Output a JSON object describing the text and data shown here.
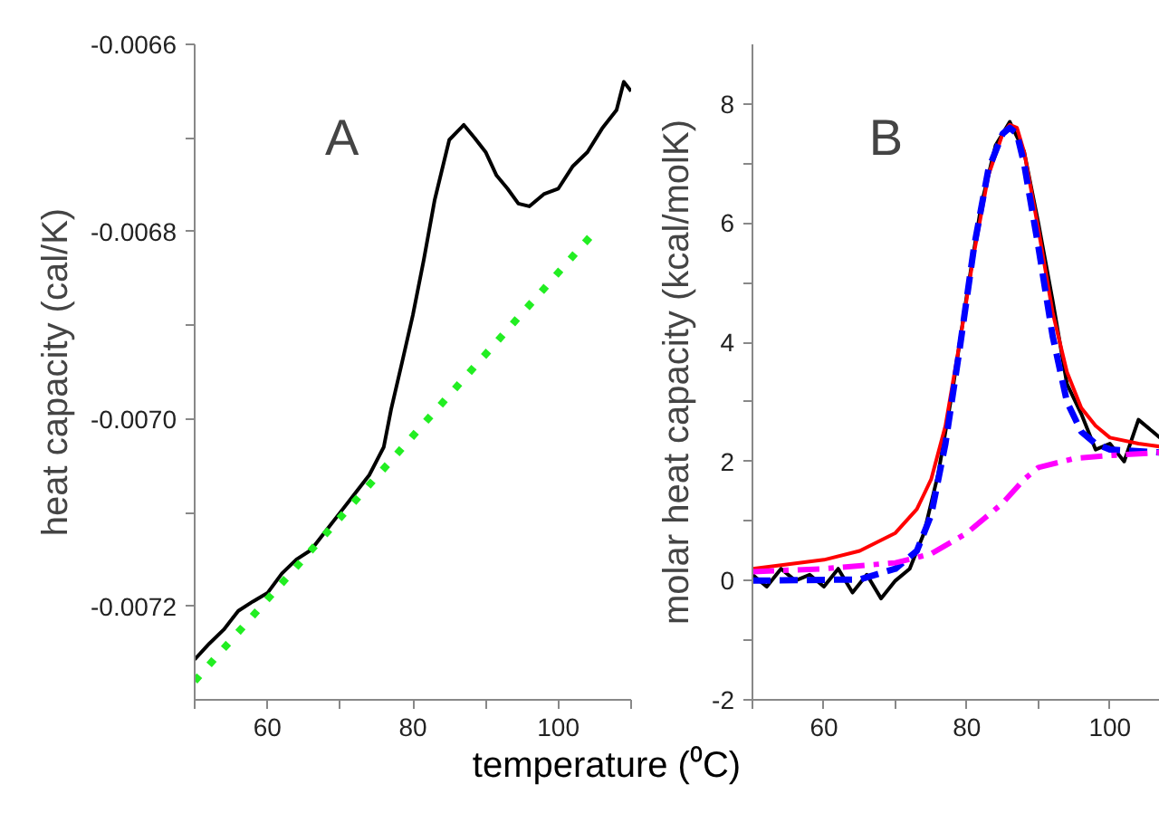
{
  "chart_data": [
    {
      "type": "line",
      "xlabel": "temperature (⁰C)",
      "ylabel": "heat capacity (cal/K)",
      "annotations": [
        "A"
      ],
      "xlim": [
        50,
        110
      ],
      "ylim": [
        -0.0073,
        -0.0066
      ],
      "xticks": [
        {
          "value": 50,
          "label": null
        },
        60,
        {
          "value": 70,
          "label": null
        },
        80,
        {
          "value": 90,
          "label": null
        },
        100,
        {
          "value": 110,
          "label": null
        }
      ],
      "yticks": [
        {
          "value": -0.0072,
          "label": "-0.0072"
        },
        {
          "value": -0.0071,
          "label": null
        },
        {
          "value": -0.007,
          "label": "-0.0070"
        },
        {
          "value": -0.0069,
          "label": null
        },
        {
          "value": -0.0068,
          "label": "-0.0068"
        },
        {
          "value": -0.0067,
          "label": null
        },
        {
          "value": -0.0066,
          "label": "-0.0066"
        }
      ],
      "grid": false,
      "series": [
        {
          "color": "#000000",
          "line_style": "solid",
          "x": [
            50,
            52,
            54,
            56,
            58,
            60,
            62,
            64,
            66,
            68,
            70,
            72,
            74,
            76,
            77,
            78.5,
            80,
            81.5,
            83,
            85,
            87,
            88.5,
            90,
            91.5,
            93,
            94.5,
            96,
            98,
            100,
            102,
            104,
            106,
            108,
            109,
            110
          ],
          "values": [
            -0.007257,
            -0.00724,
            -0.007225,
            -0.007205,
            -0.007195,
            -0.007186,
            -0.007165,
            -0.00715,
            -0.00714,
            -0.00712,
            -0.0071,
            -0.00708,
            -0.00706,
            -0.00703,
            -0.00699,
            -0.00694,
            -0.006889,
            -0.00683,
            -0.006766,
            -0.006702,
            -0.006686,
            -0.0067,
            -0.006715,
            -0.00674,
            -0.006754,
            -0.00677,
            -0.006773,
            -0.00676,
            -0.006754,
            -0.00673,
            -0.006715,
            -0.00669,
            -0.00667,
            -0.00664,
            -0.00665
          ]
        },
        {
          "color": "#22ee22",
          "line_style": "dotted",
          "x": [
            50,
            105
          ],
          "values": [
            -0.00728,
            -0.0068
          ]
        }
      ]
    },
    {
      "type": "line",
      "ylabel": "molar heat capacity (kcal/molK)",
      "annotations": [
        "B"
      ],
      "xlim": [
        50,
        107
      ],
      "ylim": [
        -2,
        9
      ],
      "xticks": [
        {
          "value": 50,
          "label": null
        },
        60,
        {
          "value": 70,
          "label": null
        },
        80,
        {
          "value": 90,
          "label": null
        },
        100
      ],
      "yticks": [
        -2,
        {
          "value": -1,
          "label": null
        },
        0,
        {
          "value": 1,
          "label": null
        },
        2,
        {
          "value": 3,
          "label": null
        },
        4,
        {
          "value": 5,
          "label": null
        },
        6,
        {
          "value": 7,
          "label": null
        },
        8
      ],
      "grid": false,
      "series": [
        {
          "color": "#000000",
          "line_style": "solid",
          "x": [
            50,
            52,
            54,
            56,
            58,
            60,
            62,
            64,
            66,
            68,
            70,
            72,
            74,
            76,
            78,
            80,
            82,
            84,
            86,
            88,
            90,
            92,
            94,
            96,
            98,
            100,
            102,
            104,
            106,
            107
          ],
          "values": [
            0.1,
            -0.1,
            0.2,
            0,
            0.1,
            -0.1,
            0.2,
            -0.2,
            0.1,
            -0.3,
            0,
            0.2,
            0.8,
            1.8,
            3.2,
            4.8,
            6.3,
            7.3,
            7.7,
            7.2,
            6.0,
            4.7,
            3.3,
            2.8,
            2.2,
            2.3,
            2.0,
            2.7,
            2.5,
            2.4
          ]
        },
        {
          "color": "#ff0000",
          "line_style": "solid",
          "x": [
            50,
            60,
            65,
            70,
            73,
            75,
            77,
            79,
            81,
            83,
            85,
            86,
            87,
            88,
            90,
            92,
            94,
            96,
            98,
            100,
            104,
            107
          ],
          "values": [
            0.2,
            0.35,
            0.5,
            0.8,
            1.2,
            1.7,
            2.6,
            4.0,
            5.5,
            6.8,
            7.5,
            7.65,
            7.6,
            7.2,
            5.9,
            4.5,
            3.5,
            2.9,
            2.6,
            2.4,
            2.3,
            2.25
          ]
        },
        {
          "color": "#0000ff",
          "line_style": "dashed",
          "x": [
            50,
            65,
            70,
            73,
            75,
            77,
            79,
            81,
            83,
            85,
            86,
            87,
            88,
            90,
            92,
            94,
            96,
            98,
            100,
            107
          ],
          "values": [
            0,
            0.02,
            0.2,
            0.5,
            1.1,
            2.3,
            3.9,
            5.6,
            6.9,
            7.5,
            7.6,
            7.5,
            7.0,
            5.6,
            4.1,
            3.0,
            2.5,
            2.3,
            2.2,
            2.15
          ]
        },
        {
          "color": "#ff00ff",
          "line_style": "dashdot",
          "x": [
            50,
            60,
            70,
            75,
            80,
            85,
            88,
            90,
            95,
            100,
            107
          ],
          "values": [
            0.15,
            0.2,
            0.3,
            0.45,
            0.8,
            1.3,
            1.7,
            1.9,
            2.05,
            2.1,
            2.15
          ]
        }
      ]
    }
  ]
}
